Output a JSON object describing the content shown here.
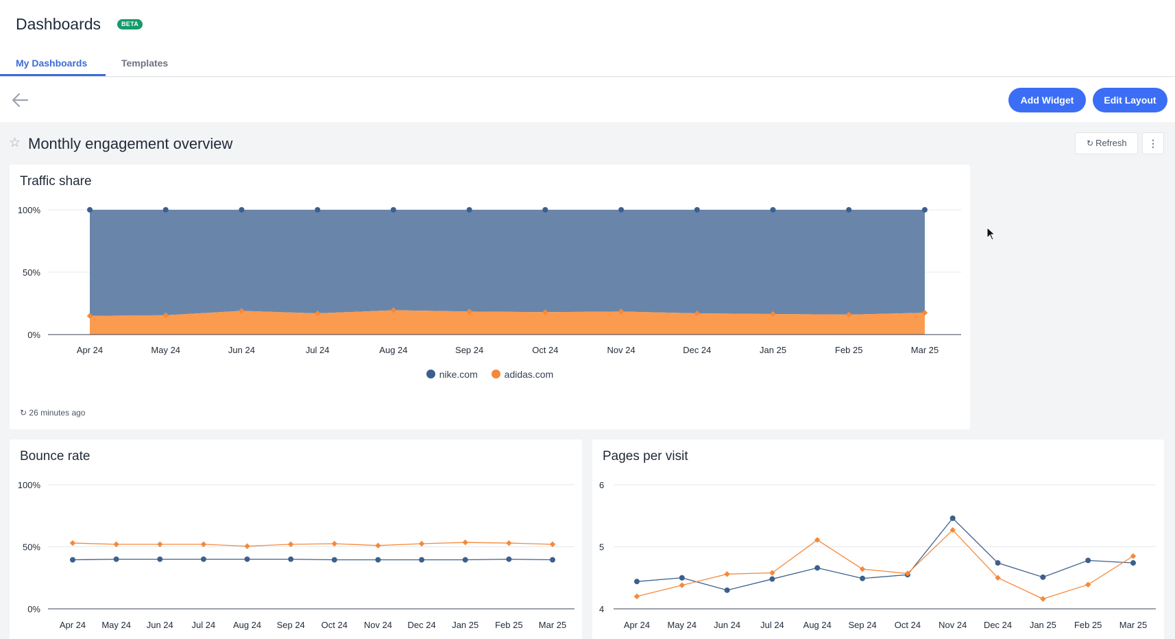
{
  "header": {
    "title": "Dashboards",
    "badge": "BETA",
    "tabs": [
      {
        "label": "My Dashboards",
        "active": true
      },
      {
        "label": "Templates",
        "active": false
      }
    ]
  },
  "actions": {
    "back_icon": "arrow-left-icon",
    "add_widget": "Add Widget",
    "edit_layout": "Edit Layout",
    "accent": "#3b6ef5"
  },
  "dashboard": {
    "title": "Monthly engagement overview",
    "refresh_label": "Refresh",
    "more_icon": "⋮"
  },
  "colors": {
    "nike": "#3c5f8c",
    "adidas": "#f5893a"
  },
  "widgets": {
    "traffic": {
      "title": "Traffic share",
      "updated": "26 minutes ago"
    },
    "bounce": {
      "title": "Bounce rate"
    },
    "pages": {
      "title": "Pages per visit"
    }
  },
  "chart_data": [
    {
      "id": "traffic",
      "type": "area",
      "stacked": "percent",
      "title": "Traffic share",
      "categories": [
        "Apr 24",
        "May 24",
        "Jun 24",
        "Jul 24",
        "Aug 24",
        "Sep 24",
        "Oct 24",
        "Nov 24",
        "Dec 24",
        "Jan 25",
        "Feb 25",
        "Mar 25"
      ],
      "yticks": [
        "0%",
        "50%",
        "100%"
      ],
      "ylim": [
        0,
        100
      ],
      "series": [
        {
          "name": "nike.com",
          "values": [
            85,
            84.5,
            81,
            83,
            80.5,
            81.5,
            82,
            81.5,
            83,
            83.5,
            84,
            82.5
          ]
        },
        {
          "name": "adidas.com",
          "values": [
            15,
            15.5,
            19,
            17,
            19.5,
            18.5,
            18,
            18.5,
            17,
            16.5,
            16,
            17.5
          ]
        }
      ],
      "legend": "bottom-center",
      "grid": true
    },
    {
      "id": "bounce",
      "type": "line",
      "title": "Bounce rate",
      "categories": [
        "Apr 24",
        "May 24",
        "Jun 24",
        "Jul 24",
        "Aug 24",
        "Sep 24",
        "Oct 24",
        "Nov 24",
        "Dec 24",
        "Jan 25",
        "Feb 25",
        "Mar 25"
      ],
      "yticks": [
        "0%",
        "50%",
        "100%"
      ],
      "ylim": [
        0,
        100
      ],
      "series": [
        {
          "name": "nike.com",
          "values": [
            39.5,
            40,
            40,
            40,
            40,
            40,
            39.5,
            39.5,
            39.5,
            39.5,
            40,
            39.5
          ]
        },
        {
          "name": "adidas.com",
          "values": [
            53,
            52,
            52,
            52,
            50.5,
            52,
            52.5,
            51,
            52.5,
            53.5,
            53,
            52
          ]
        }
      ],
      "grid": true
    },
    {
      "id": "pages",
      "type": "line",
      "title": "Pages per visit",
      "categories": [
        "Apr 24",
        "May 24",
        "Jun 24",
        "Jul 24",
        "Aug 24",
        "Sep 24",
        "Oct 24",
        "Nov 24",
        "Dec 24",
        "Jan 25",
        "Feb 25",
        "Mar 25"
      ],
      "yticks": [
        "4",
        "5",
        "6"
      ],
      "ylim": [
        4,
        6
      ],
      "series": [
        {
          "name": "nike.com",
          "values": [
            4.44,
            4.5,
            4.3,
            4.48,
            4.66,
            4.49,
            4.55,
            5.46,
            4.74,
            4.51,
            4.78,
            4.74
          ]
        },
        {
          "name": "adidas.com",
          "values": [
            4.2,
            4.38,
            4.56,
            4.58,
            5.11,
            4.64,
            4.57,
            5.27,
            4.5,
            4.16,
            4.39,
            4.85
          ]
        }
      ],
      "grid": true
    }
  ]
}
